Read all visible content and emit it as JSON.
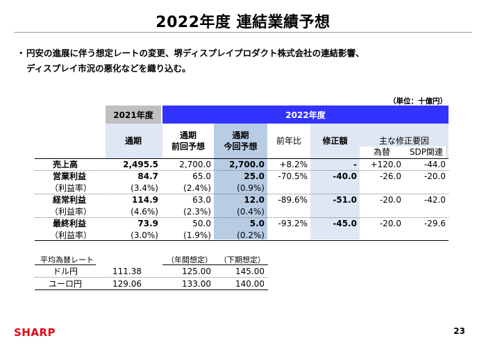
{
  "title": "2022年度 連結業績予想",
  "bullet": {
    "mark": "・",
    "line1": "円安の進展に伴う想定レートの変更、堺ディスプレイプロダクト株式会社の連結影響、",
    "line2": "ディスプレイ市況の悪化などを織り込む。"
  },
  "unit": "（単位：十億円）",
  "header": {
    "fy2021": "2021年度",
    "fy2022": "2022年度",
    "full_year": "通期",
    "prev_forecast_1": "通期",
    "prev_forecast_2": "前回予想",
    "curr_forecast_1": "通期",
    "curr_forecast_2": "今回予想",
    "yoy": "前年比",
    "revision": "修正額",
    "main_factors": "主な修正要因",
    "fx": "為替",
    "sdp": "SDP関連"
  },
  "rows": [
    {
      "label": "売上高",
      "fy2021": "2,495.5",
      "prev": "2,700.0",
      "curr": "2,700.0",
      "yoy": "+8.2%",
      "rev": "-",
      "fx": "+120.0",
      "sdp": "-44.0",
      "bold": true
    },
    {
      "label": "営業利益",
      "fy2021": "84.7",
      "prev": "65.0",
      "curr": "25.0",
      "yoy": "-70.5%",
      "rev": "-40.0",
      "fx": "-26.0",
      "sdp": "-20.0",
      "bold": true
    },
    {
      "label": "（利益率）",
      "fy2021": "(3.4%)",
      "prev": "(2.4%)",
      "curr": "(0.9%)",
      "yoy": "",
      "rev": "",
      "fx": "",
      "sdp": "",
      "bold": false
    },
    {
      "label": "経常利益",
      "fy2021": "114.9",
      "prev": "63.0",
      "curr": "12.0",
      "yoy": "-89.6%",
      "rev": "-51.0",
      "fx": "-20.0",
      "sdp": "-42.0",
      "bold": true
    },
    {
      "label": "（利益率）",
      "fy2021": "(4.6%)",
      "prev": "(2.3%)",
      "curr": "(0.4%)",
      "yoy": "",
      "rev": "",
      "fx": "",
      "sdp": "",
      "bold": false
    },
    {
      "label": "最終利益",
      "fy2021": "73.9",
      "prev": "50.0",
      "curr": "5.0",
      "yoy": "-93.2%",
      "rev": "-45.0",
      "fx": "-20.0",
      "sdp": "-29.6",
      "bold": true
    },
    {
      "label": "（利益率）",
      "fy2021": "(3.0%)",
      "prev": "(1.9%)",
      "curr": "(0.2%)",
      "yoy": "",
      "rev": "",
      "fx": "",
      "sdp": "",
      "bold": false
    }
  ],
  "fx_table": {
    "label": "平均為替レート",
    "annual": "（年間想定）",
    "h2": "（下期想定）",
    "rows": [
      {
        "label": "ドル円",
        "fy2021": "111.38",
        "annual": "125.00",
        "h2": "145.00"
      },
      {
        "label": "ユーロ円",
        "fy2021": "129.06",
        "annual": "133.00",
        "h2": "140.00"
      }
    ]
  },
  "logo": "SHARP",
  "page_number": "23"
}
